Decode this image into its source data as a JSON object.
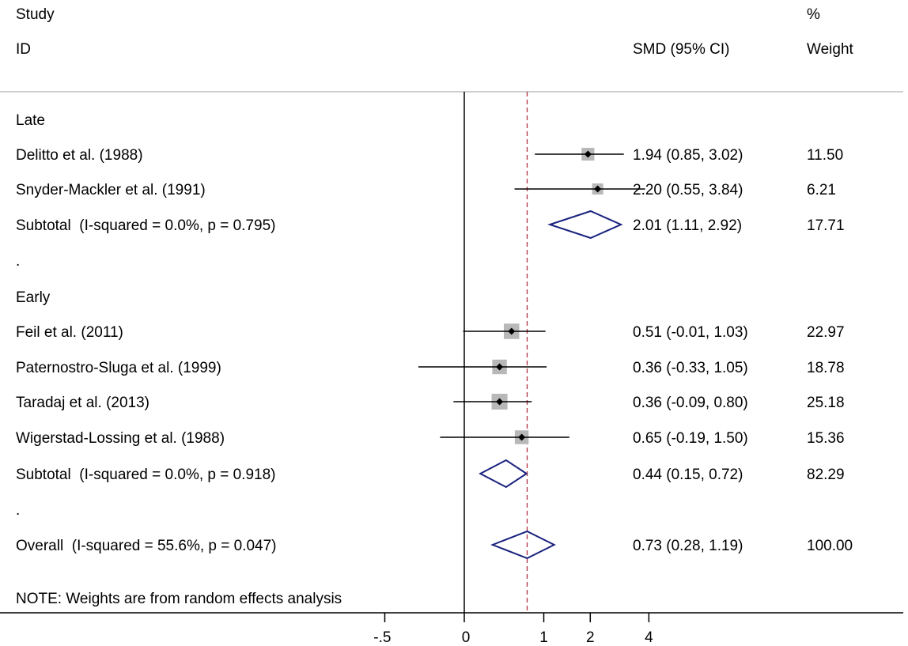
{
  "chart_data": {
    "type": "forest",
    "headers": {
      "study_line1": "Study",
      "study_line2": "ID",
      "effect": "SMD (95% CI)",
      "weight_line1": "%",
      "weight_line2": "Weight"
    },
    "rows": [
      {
        "kind": "group",
        "label": "Late"
      },
      {
        "kind": "study",
        "label": "Delitto et al. (1988)",
        "est": 1.94,
        "lo": 0.85,
        "hi": 3.02,
        "ci_text": "1.94 (0.85, 3.02)",
        "weight": "11.50"
      },
      {
        "kind": "study",
        "label": "Snyder-Mackler et al. (1991)",
        "est": 2.2,
        "lo": 0.55,
        "hi": 3.84,
        "ci_text": "2.20 (0.55, 3.84)",
        "weight": "6.21"
      },
      {
        "kind": "subtotal",
        "label": "Subtotal  (I-squared = 0.0%, p = 0.795)",
        "est": 2.01,
        "lo": 1.11,
        "hi": 2.92,
        "ci_text": "2.01 (1.11, 2.92)",
        "weight": "17.71"
      },
      {
        "kind": "spacer",
        "label": "."
      },
      {
        "kind": "group",
        "label": "Early"
      },
      {
        "kind": "study",
        "label": "Feil et al. (2011)",
        "est": 0.51,
        "lo": -0.01,
        "hi": 1.03,
        "ci_text": "0.51 (-0.01, 1.03)",
        "weight": "22.97"
      },
      {
        "kind": "study",
        "label": "Paternostro-Sluga et al. (1999)",
        "est": 0.36,
        "lo": -0.33,
        "hi": 1.05,
        "ci_text": "0.36 (-0.33, 1.05)",
        "weight": "18.78"
      },
      {
        "kind": "study",
        "label": "Taradaj et al. (2013)",
        "est": 0.36,
        "lo": -0.09,
        "hi": 0.8,
        "ci_text": "0.36 (-0.09, 0.80)",
        "weight": "25.18"
      },
      {
        "kind": "study",
        "label": "Wigerstad-Lossing et al. (1988)",
        "est": 0.65,
        "lo": -0.19,
        "hi": 1.5,
        "ci_text": "0.65 (-0.19, 1.50)",
        "weight": "15.36"
      },
      {
        "kind": "subtotal",
        "label": "Subtotal  (I-squared = 0.0%, p = 0.918)",
        "est": 0.44,
        "lo": 0.15,
        "hi": 0.72,
        "ci_text": "0.44 (0.15, 0.72)",
        "weight": "82.29"
      },
      {
        "kind": "spacer",
        "label": "."
      },
      {
        "kind": "overall",
        "label": "Overall  (I-squared = 55.6%, p = 0.047)",
        "est": 0.73,
        "lo": 0.28,
        "hi": 1.19,
        "ci_text": "0.73 (0.28, 1.19)",
        "weight": "100.00"
      }
    ],
    "note": "NOTE: Weights are from random effects analysis",
    "x_ticks": [
      {
        "value": -0.5,
        "label": "-.5"
      },
      {
        "value": 0,
        "label": "0"
      },
      {
        "value": 1,
        "label": "1"
      },
      {
        "value": 2,
        "label": "2"
      },
      {
        "value": 4,
        "label": "4"
      }
    ],
    "null_line": 0,
    "overall_line": 0.73,
    "colors": {
      "diamond": "#1a237e",
      "box": "#b8b8b8",
      "overall_line": "#b03040",
      "rule": "#bdbdbd"
    }
  }
}
